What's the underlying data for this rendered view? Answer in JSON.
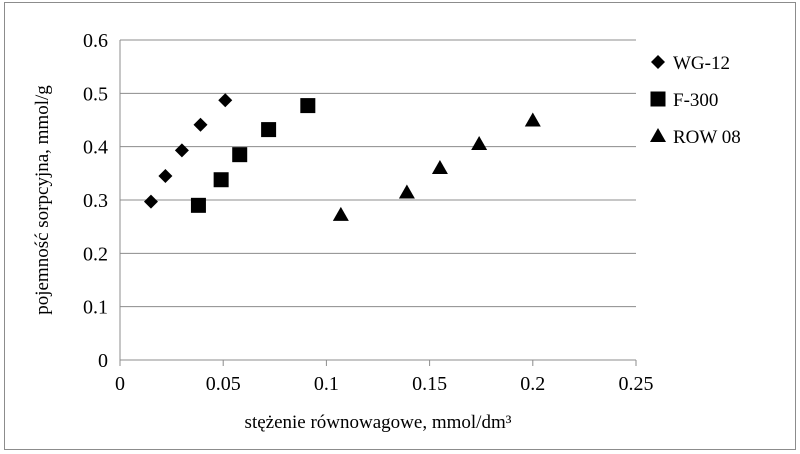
{
  "chart_data": {
    "type": "scatter",
    "title": "",
    "xlabel": "stężenie równowagowe, mmol/dm³",
    "ylabel": "pojemność sorpcyjna, mmol/g",
    "xlim": [
      0,
      0.25
    ],
    "ylim": [
      0,
      0.6
    ],
    "x_ticks": [
      "0",
      "0.05",
      "0.1",
      "0.15",
      "0.2",
      "0.25"
    ],
    "y_ticks": [
      "0",
      "0.1",
      "0.2",
      "0.3",
      "0.4",
      "0.5",
      "0.6"
    ],
    "grid": "horizontal",
    "legend_position": "right",
    "series": [
      {
        "name": "WG-12",
        "marker": "diamond",
        "color": "#000000",
        "points": [
          [
            0.015,
            0.297
          ],
          [
            0.022,
            0.345
          ],
          [
            0.03,
            0.393
          ],
          [
            0.039,
            0.441
          ],
          [
            0.051,
            0.487
          ]
        ]
      },
      {
        "name": "F-300",
        "marker": "square",
        "color": "#000000",
        "points": [
          [
            0.038,
            0.29
          ],
          [
            0.049,
            0.338
          ],
          [
            0.058,
            0.385
          ],
          [
            0.072,
            0.432
          ],
          [
            0.091,
            0.477
          ]
        ]
      },
      {
        "name": "ROW 08",
        "marker": "triangle",
        "color": "#000000",
        "points": [
          [
            0.107,
            0.272
          ],
          [
            0.139,
            0.314
          ],
          [
            0.155,
            0.36
          ],
          [
            0.174,
            0.405
          ],
          [
            0.2,
            0.449
          ]
        ]
      }
    ]
  },
  "colors": {
    "grid": "#8c8c8c",
    "axis": "#8c8c8c",
    "frame": "#8c8c8c",
    "marker": "#000000"
  }
}
